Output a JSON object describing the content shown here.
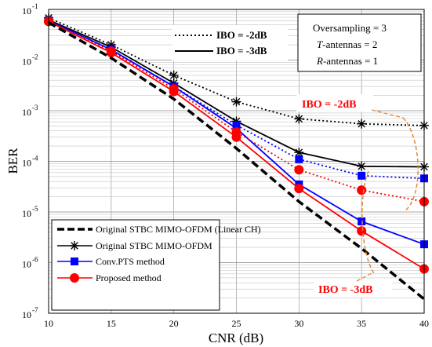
{
  "chart_data": {
    "type": "line",
    "xlabel": "CNR (dB)",
    "ylabel": "BER",
    "xlim": [
      10,
      40
    ],
    "ylim": [
      1e-07,
      0.1
    ],
    "yscale": "log",
    "grid": true,
    "x": [
      10,
      15,
      20,
      25,
      30,
      35,
      40
    ],
    "x_tick_labels": [
      "10",
      "15",
      "20",
      "25",
      "30",
      "35",
      "40"
    ],
    "y_tick_labels": [
      {
        "base": "10",
        "exp": "-7"
      },
      {
        "base": "10",
        "exp": "-6"
      },
      {
        "base": "10",
        "exp": "-5"
      },
      {
        "base": "10",
        "exp": "-4"
      },
      {
        "base": "10",
        "exp": "-3"
      },
      {
        "base": "10",
        "exp": "-2"
      },
      {
        "base": "10",
        "exp": "-1"
      }
    ],
    "series": [
      {
        "name": "Original STBC MIMO-OFDM (Linear CH)",
        "color": "#000000",
        "style": "dashed-thick",
        "marker": "none",
        "ibo": "none",
        "values": [
          0.055,
          0.011,
          0.0017,
          0.00018,
          1.6e-05,
          1.9e-06,
          1.9e-07
        ]
      },
      {
        "name": "Original STBC MIMO-OFDM",
        "color": "#000000",
        "style": "dotted",
        "marker": "star",
        "ibo": "-2dB",
        "values": [
          0.068,
          0.02,
          0.005,
          0.0015,
          0.00069,
          0.00055,
          0.00051
        ]
      },
      {
        "name": "Original STBC MIMO-OFDM",
        "color": "#000000",
        "style": "solid",
        "marker": "star",
        "ibo": "-3dB",
        "values": [
          0.062,
          0.018,
          0.0035,
          0.00062,
          0.00015,
          8e-05,
          7.8e-05
        ]
      },
      {
        "name": "Conv.PTS method",
        "color": "#0000ff",
        "style": "dotted",
        "marker": "square",
        "ibo": "-2dB",
        "values": [
          0.06,
          0.016,
          0.003,
          0.00052,
          0.00011,
          5.2e-05,
          4.6e-05
        ]
      },
      {
        "name": "Conv.PTS method",
        "color": "#0000ff",
        "style": "solid",
        "marker": "square",
        "ibo": "-3dB",
        "values": [
          0.06,
          0.016,
          0.003,
          0.00045,
          3.5e-05,
          6.5e-06,
          2.3e-06
        ]
      },
      {
        "name": "Proposed method",
        "color": "#ff0000",
        "style": "dotted",
        "marker": "circle",
        "ibo": "-2dB",
        "values": [
          0.058,
          0.015,
          0.0027,
          0.00038,
          6.8e-05,
          2.7e-05,
          1.6e-05
        ]
      },
      {
        "name": "Proposed method",
        "color": "#ff0000",
        "style": "solid",
        "marker": "circle",
        "ibo": "-3dB",
        "values": [
          0.058,
          0.014,
          0.0024,
          0.0003,
          2.9e-05,
          4.2e-06,
          7.5e-07
        ]
      }
    ],
    "legend_top_left": {
      "position": "top-left",
      "items": [
        {
          "label": "IBO = -2dB",
          "style": "dotted"
        },
        {
          "label": "IBO = -3dB",
          "style": "solid"
        }
      ]
    },
    "legend_bottom_left": {
      "position": "bottom-left",
      "items": [
        {
          "label": "Original STBC MIMO-OFDM (Linear CH)",
          "marker": "none",
          "color": "#000000",
          "style": "dashed-thick"
        },
        {
          "label": "Original STBC MIMO-OFDM",
          "marker": "star",
          "color": "#000000",
          "style": "solid"
        },
        {
          "label": "Conv.PTS method",
          "marker": "square",
          "color": "#0000ff",
          "style": "solid"
        },
        {
          "label": "Proposed method",
          "marker": "circle",
          "color": "#ff0000",
          "style": "solid"
        }
      ]
    },
    "parameters_box": {
      "position": "top-right",
      "lines": [
        {
          "pre": "Oversampling = 3",
          "italic": "",
          "post": ""
        },
        {
          "pre": "",
          "italic": "T",
          "post": "-antennas = 2"
        },
        {
          "pre": "",
          "italic": "R",
          "post": "-antennas = 1"
        }
      ]
    },
    "annotations": [
      {
        "text": "IBO = -2dB",
        "color": "#ff0000"
      },
      {
        "text": "IBO = -3dB",
        "color": "#ff0000"
      }
    ],
    "annotation_ellipse_color": "#e08a3c"
  }
}
